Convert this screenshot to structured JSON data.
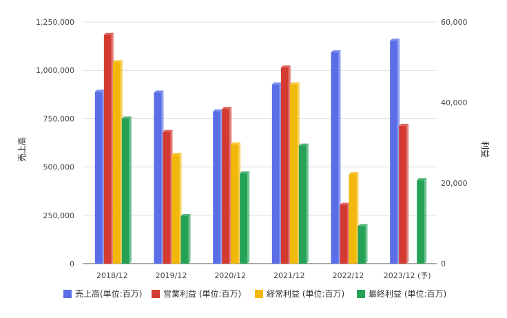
{
  "chart_data": {
    "type": "bar",
    "categories": [
      "2018/12",
      "2019/12",
      "2020/12",
      "2021/12",
      "2022/12",
      "2023/12 (予)"
    ],
    "series": [
      {
        "name": "売上高(単位:百万)",
        "axis": "left",
        "color": "#5b6ee8",
        "values": [
          889000,
          885000,
          787000,
          927000,
          1093000,
          1153000
        ]
      },
      {
        "name": "営業利益 (単位:百万)",
        "axis": "right",
        "color": "#d33b32",
        "values": [
          56800,
          32700,
          38400,
          48700,
          14600,
          34200
        ]
      },
      {
        "name": "経常利益 (単位:百万)",
        "axis": "right",
        "color": "#f2b809",
        "values": [
          50000,
          27000,
          29600,
          44500,
          22200,
          null
        ]
      },
      {
        "name": "最終利益 (単位:百万)",
        "axis": "right",
        "color": "#26a257",
        "values": [
          36000,
          11800,
          22400,
          29300,
          9300,
          20700
        ]
      }
    ],
    "ylabel": "売上高",
    "y2label": "利益",
    "ylim": [
      0,
      1250000
    ],
    "y2lim": [
      0,
      60000
    ],
    "yticks": [
      {
        "value": 0,
        "label": "0"
      },
      {
        "value": 250000,
        "label": "250,000"
      },
      {
        "value": 500000,
        "label": "500,000"
      },
      {
        "value": 750000,
        "label": "750,000"
      },
      {
        "value": 1000000,
        "label": "1,000,000"
      },
      {
        "value": 1250000,
        "label": "1,250,000"
      }
    ],
    "y2ticks": [
      {
        "value": 0,
        "label": "0"
      },
      {
        "value": 20000,
        "label": "20,000"
      },
      {
        "value": 40000,
        "label": "40,000"
      },
      {
        "value": 60000,
        "label": "60,000"
      }
    ],
    "grid": true,
    "legend": "bottom"
  }
}
